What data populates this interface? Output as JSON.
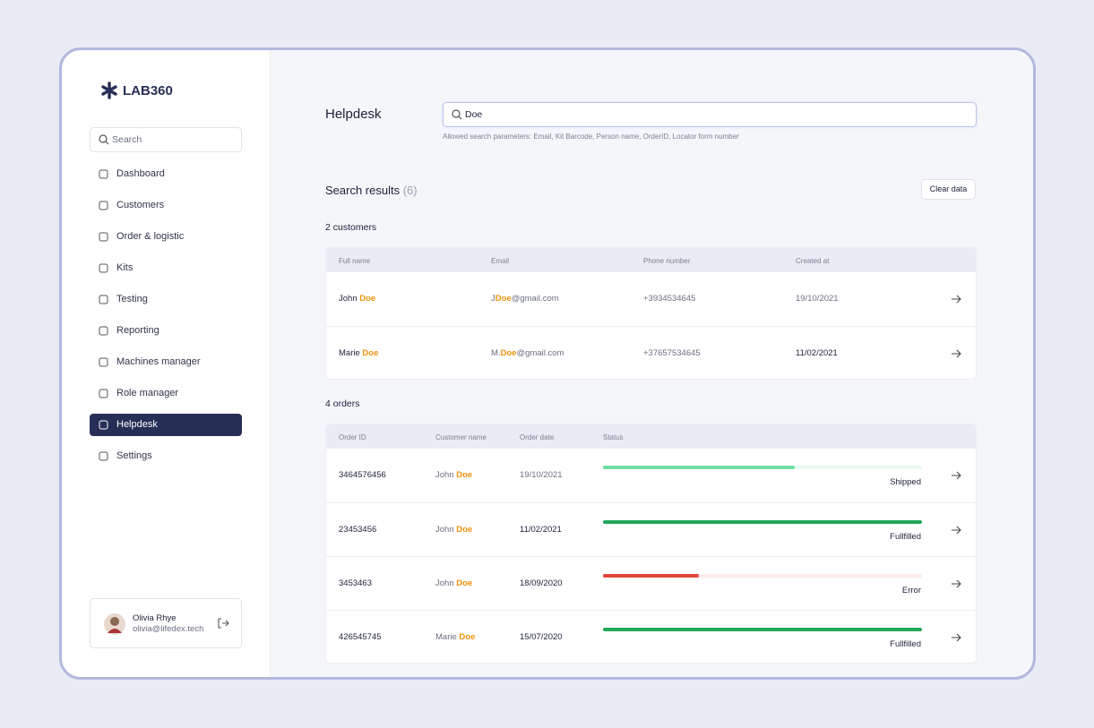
{
  "sidebar": {
    "logo": "LAB360",
    "search_placeholder": "Search",
    "nav": [
      {
        "label": "Dashboard"
      },
      {
        "label": "Customers"
      },
      {
        "label": "Order & logistic"
      },
      {
        "label": "Kits"
      },
      {
        "label": "Testing"
      },
      {
        "label": "Reporting"
      },
      {
        "label": "Machines manager"
      },
      {
        "label": "Role manager"
      },
      {
        "label": "Helpdesk",
        "active": true
      },
      {
        "label": "Settings"
      }
    ]
  },
  "user": {
    "name": "Olivia Rhye",
    "email": "olivia@lifedex.tech"
  },
  "header": {
    "title": "Helpdesk",
    "search_value": "Doe",
    "hint": "Allowed search parameters: Email, Kit Barcode, Person name, OrderID, Locator form number"
  },
  "results": {
    "title": "Search results",
    "count": "(6)",
    "clear_button": "Clear data"
  },
  "customers": {
    "heading": "2 customers",
    "columns": [
      "Full name",
      "Email",
      "Phone number",
      "Created at"
    ],
    "rows": [
      {
        "name": {
          "pre": "John ",
          "match": "Doe"
        },
        "email": {
          "pre": "J",
          "match": "Doe",
          "post": "@gmail.com"
        },
        "phone": "+3934534645",
        "created": "19/10/2021"
      },
      {
        "name": {
          "pre": "Marie ",
          "match": "Doe"
        },
        "email": {
          "pre": "M.",
          "match": "Doe",
          "post": "@gmail.com"
        },
        "phone": "+37657534645",
        "created": "11/02/2021"
      }
    ]
  },
  "orders": {
    "heading": "4 orders",
    "columns": [
      "Order ID",
      "Customer name",
      "Order date",
      "Status"
    ],
    "rows": [
      {
        "id": "3464576456",
        "customer": {
          "pre": "John ",
          "match": "Doe"
        },
        "date": "19/10/2021",
        "status": "Shipped",
        "progress": 60,
        "color": "#6fe0a0",
        "track": "#e6f9ee"
      },
      {
        "id": "23453456",
        "customer": {
          "pre": "John ",
          "match": "Doe"
        },
        "date": "11/02/2021",
        "status": "Fullfilled",
        "progress": 100,
        "color": "#22a75b",
        "track": "#e6f9ee"
      },
      {
        "id": "3453463",
        "customer": {
          "pre": "John ",
          "match": "Doe"
        },
        "date": "18/09/2020",
        "status": "Error",
        "progress": 30,
        "color": "#e4443c",
        "track": "#fdeceb"
      },
      {
        "id": "426545745",
        "customer": {
          "pre": "Marie ",
          "match": "Doe"
        },
        "date": "15/07/2020",
        "status": "Fullfilled",
        "progress": 100,
        "color": "#22a75b",
        "track": "#e6f9ee"
      }
    ]
  }
}
